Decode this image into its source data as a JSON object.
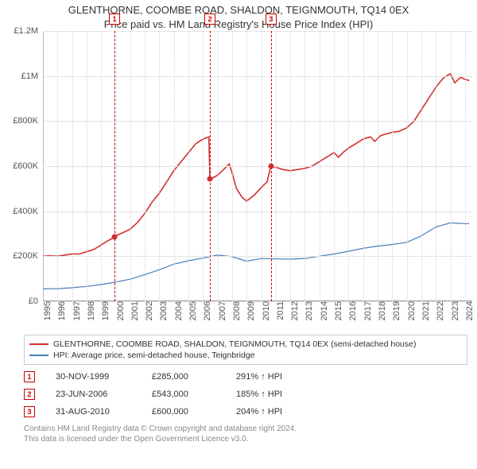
{
  "title": {
    "line1": "GLENTHORNE, COOMBE ROAD, SHALDON, TEIGNMOUTH, TQ14 0EX",
    "line2": "Price paid vs. HM Land Registry's House Price Index (HPI)",
    "fontsize": 13,
    "color": "#333333"
  },
  "chart": {
    "type": "line",
    "background_color": "#ffffff",
    "grid_color_h": "#e4e4e4",
    "grid_color_v": "#d4d4d4",
    "axis_color": "#999999",
    "x_years": [
      1995,
      1996,
      1997,
      1998,
      1999,
      2000,
      2001,
      2002,
      2003,
      2004,
      2005,
      2006,
      2007,
      2008,
      2009,
      2010,
      2011,
      2012,
      2013,
      2014,
      2015,
      2016,
      2017,
      2018,
      2019,
      2020,
      2021,
      2022,
      2023,
      2024
    ],
    "x_min": 1995,
    "x_max": 2024.5,
    "y_min": 0,
    "y_max": 1200000,
    "y_ticks": [
      0,
      200000,
      400000,
      600000,
      800000,
      1000000,
      1200000
    ],
    "y_tick_labels": [
      "£0",
      "£200K",
      "£400K",
      "£600K",
      "£800K",
      "£1M",
      "£1.2M"
    ],
    "y_tick_fontsize": 11,
    "x_tick_fontsize": 11,
    "marker_vline_color": "#cc0000",
    "marker_box_border": "#cc0000",
    "marker_box_text": "#cc0000",
    "series": [
      {
        "label": "GLENTHORNE, COOMBE ROAD, SHALDON, TEIGNMOUTH, TQ14 0EX (semi-detached house)",
        "color": "#d32f2f",
        "line_width": 1.6,
        "points": [
          [
            1995.0,
            200000
          ],
          [
            1995.5,
            202000
          ],
          [
            1996.0,
            200000
          ],
          [
            1996.5,
            205000
          ],
          [
            1997.0,
            210000
          ],
          [
            1997.5,
            210000
          ],
          [
            1998.0,
            220000
          ],
          [
            1998.5,
            230000
          ],
          [
            1999.0,
            250000
          ],
          [
            1999.5,
            270000
          ],
          [
            1999.92,
            285000
          ],
          [
            2000.0,
            290000
          ],
          [
            2000.5,
            305000
          ],
          [
            2001.0,
            320000
          ],
          [
            2001.5,
            350000
          ],
          [
            2002.0,
            390000
          ],
          [
            2002.5,
            440000
          ],
          [
            2003.0,
            480000
          ],
          [
            2003.5,
            530000
          ],
          [
            2004.0,
            580000
          ],
          [
            2004.5,
            620000
          ],
          [
            2005.0,
            660000
          ],
          [
            2005.5,
            700000
          ],
          [
            2006.0,
            720000
          ],
          [
            2006.4,
            730000
          ],
          [
            2006.48,
            543000
          ],
          [
            2006.6,
            545000
          ],
          [
            2007.0,
            560000
          ],
          [
            2007.5,
            590000
          ],
          [
            2007.8,
            610000
          ],
          [
            2008.0,
            570000
          ],
          [
            2008.3,
            500000
          ],
          [
            2008.7,
            460000
          ],
          [
            2009.0,
            445000
          ],
          [
            2009.5,
            470000
          ],
          [
            2010.0,
            505000
          ],
          [
            2010.4,
            530000
          ],
          [
            2010.67,
            600000
          ],
          [
            2011.0,
            595000
          ],
          [
            2011.5,
            585000
          ],
          [
            2012.0,
            580000
          ],
          [
            2012.5,
            585000
          ],
          [
            2013.0,
            590000
          ],
          [
            2013.5,
            600000
          ],
          [
            2014.0,
            620000
          ],
          [
            2014.5,
            640000
          ],
          [
            2015.0,
            660000
          ],
          [
            2015.3,
            640000
          ],
          [
            2015.7,
            665000
          ],
          [
            2016.0,
            680000
          ],
          [
            2016.5,
            700000
          ],
          [
            2017.0,
            720000
          ],
          [
            2017.5,
            730000
          ],
          [
            2017.8,
            710000
          ],
          [
            2018.2,
            735000
          ],
          [
            2018.7,
            745000
          ],
          [
            2019.0,
            750000
          ],
          [
            2019.5,
            755000
          ],
          [
            2020.0,
            770000
          ],
          [
            2020.5,
            800000
          ],
          [
            2021.0,
            850000
          ],
          [
            2021.5,
            900000
          ],
          [
            2022.0,
            950000
          ],
          [
            2022.5,
            990000
          ],
          [
            2023.0,
            1010000
          ],
          [
            2023.3,
            970000
          ],
          [
            2023.7,
            995000
          ],
          [
            2024.0,
            985000
          ],
          [
            2024.3,
            980000
          ]
        ]
      },
      {
        "label": "HPI: Average price, semi-detached house, Teignbridge",
        "color": "#4a7ebb",
        "line_width": 1.2,
        "points": [
          [
            1995.0,
            55000
          ],
          [
            1996.0,
            56000
          ],
          [
            1997.0,
            60000
          ],
          [
            1998.0,
            66000
          ],
          [
            1999.0,
            74000
          ],
          [
            2000.0,
            85000
          ],
          [
            2001.0,
            98000
          ],
          [
            2002.0,
            118000
          ],
          [
            2003.0,
            140000
          ],
          [
            2004.0,
            165000
          ],
          [
            2005.0,
            180000
          ],
          [
            2006.0,
            192000
          ],
          [
            2007.0,
            205000
          ],
          [
            2008.0,
            198000
          ],
          [
            2009.0,
            178000
          ],
          [
            2010.0,
            190000
          ],
          [
            2011.0,
            188000
          ],
          [
            2012.0,
            187000
          ],
          [
            2013.0,
            190000
          ],
          [
            2014.0,
            200000
          ],
          [
            2015.0,
            210000
          ],
          [
            2016.0,
            222000
          ],
          [
            2017.0,
            235000
          ],
          [
            2018.0,
            245000
          ],
          [
            2019.0,
            252000
          ],
          [
            2020.0,
            262000
          ],
          [
            2021.0,
            290000
          ],
          [
            2022.0,
            330000
          ],
          [
            2023.0,
            348000
          ],
          [
            2024.0,
            345000
          ],
          [
            2024.3,
            345000
          ]
        ]
      }
    ],
    "sale_markers": [
      {
        "n": "1",
        "x": 1999.92,
        "y": 285000
      },
      {
        "n": "2",
        "x": 2006.48,
        "y": 543000
      },
      {
        "n": "3",
        "x": 2010.67,
        "y": 600000
      }
    ],
    "marker_dot_color": "#d32f2f"
  },
  "legend": {
    "border_color": "#cccccc",
    "fontsize": 10.5,
    "items": [
      {
        "color": "#d32f2f",
        "text": "GLENTHORNE, COOMBE ROAD, SHALDON, TEIGNMOUTH, TQ14 0EX (semi-detached house)"
      },
      {
        "color": "#4a7ebb",
        "text": "HPI: Average price, semi-detached house, Teignbridge"
      }
    ]
  },
  "sales": [
    {
      "n": "1",
      "date": "30-NOV-1999",
      "price": "£285,000",
      "hpi": "291% ↑ HPI"
    },
    {
      "n": "2",
      "date": "23-JUN-2006",
      "price": "£543,000",
      "hpi": "185% ↑ HPI"
    },
    {
      "n": "3",
      "date": "31-AUG-2010",
      "price": "£600,000",
      "hpi": "204% ↑ HPI"
    }
  ],
  "sale_marker_border": "#cc0000",
  "sale_marker_text": "#cc0000",
  "footer": {
    "line1": "Contains HM Land Registry data © Crown copyright and database right 2024.",
    "line2": "This data is licensed under the Open Government Licence v3.0.",
    "color": "#888888",
    "fontsize": 10
  }
}
